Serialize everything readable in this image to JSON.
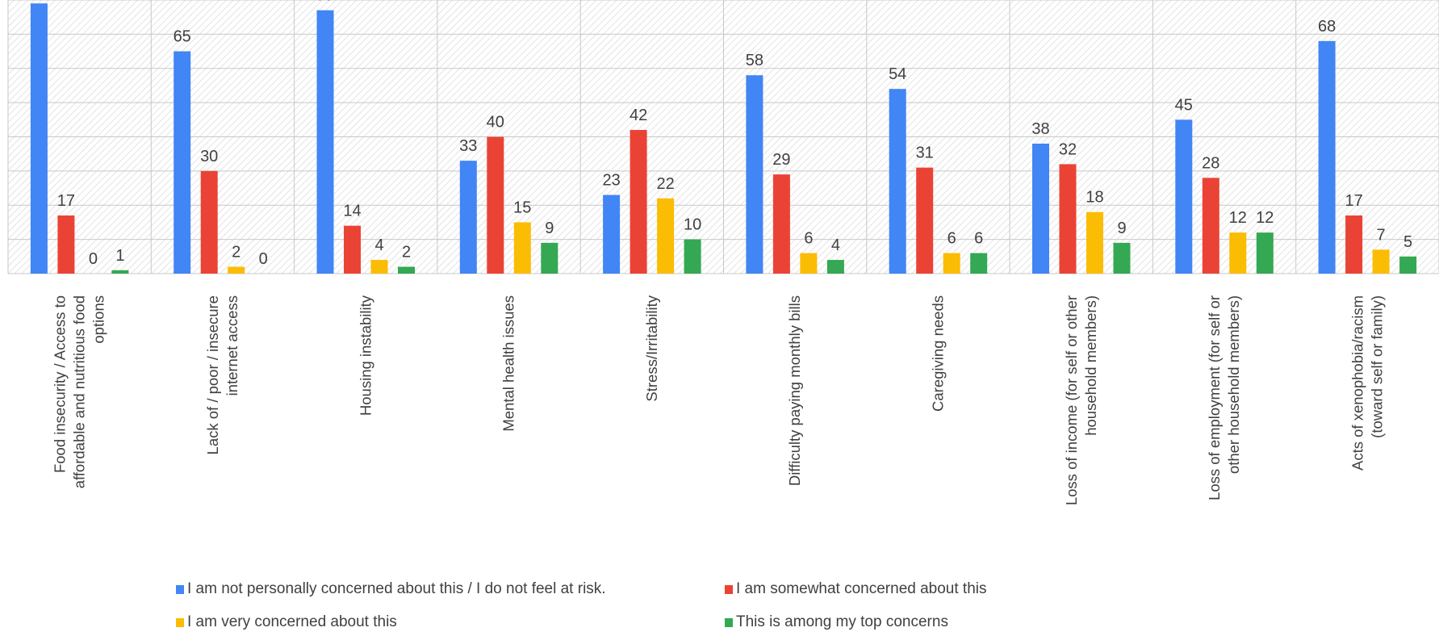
{
  "chart_data": {
    "type": "bar",
    "categories": [
      [
        "Food insecurity / Access to",
        "affordable and nutritious food",
        "options"
      ],
      [
        "Lack of / poor / insecure",
        "internet access"
      ],
      [
        "Housing instability"
      ],
      [
        "Mental health issues"
      ],
      [
        "Stress/Irritability"
      ],
      [
        "Difficulty paying monthly bills"
      ],
      [
        "Caregiving needs"
      ],
      [
        "Loss of income (for self or other",
        "household members)"
      ],
      [
        "Loss of employment (for self or",
        "other household members)"
      ],
      [
        "Acts of xenophobia/racism",
        "(toward self or family)"
      ]
    ],
    "series": [
      {
        "name": "I am not personally concerned about this / I do not feel at risk.",
        "color": "#4285F4",
        "values": [
          79,
          65,
          77,
          33,
          23,
          58,
          54,
          38,
          45,
          68
        ]
      },
      {
        "name": "I am somewhat concerned about this",
        "color": "#EA4335",
        "values": [
          17,
          30,
          14,
          40,
          42,
          29,
          31,
          32,
          28,
          17
        ]
      },
      {
        "name": "I am very concerned about this",
        "color": "#FBBC04",
        "values": [
          0,
          2,
          4,
          15,
          22,
          6,
          6,
          18,
          12,
          7
        ]
      },
      {
        "name": "This is among my top concerns",
        "color": "#34A853",
        "values": [
          1,
          0,
          2,
          9,
          10,
          4,
          6,
          9,
          12,
          5
        ]
      }
    ],
    "ylim": [
      0,
      80
    ],
    "grid": true,
    "legend_position": "bottom"
  }
}
